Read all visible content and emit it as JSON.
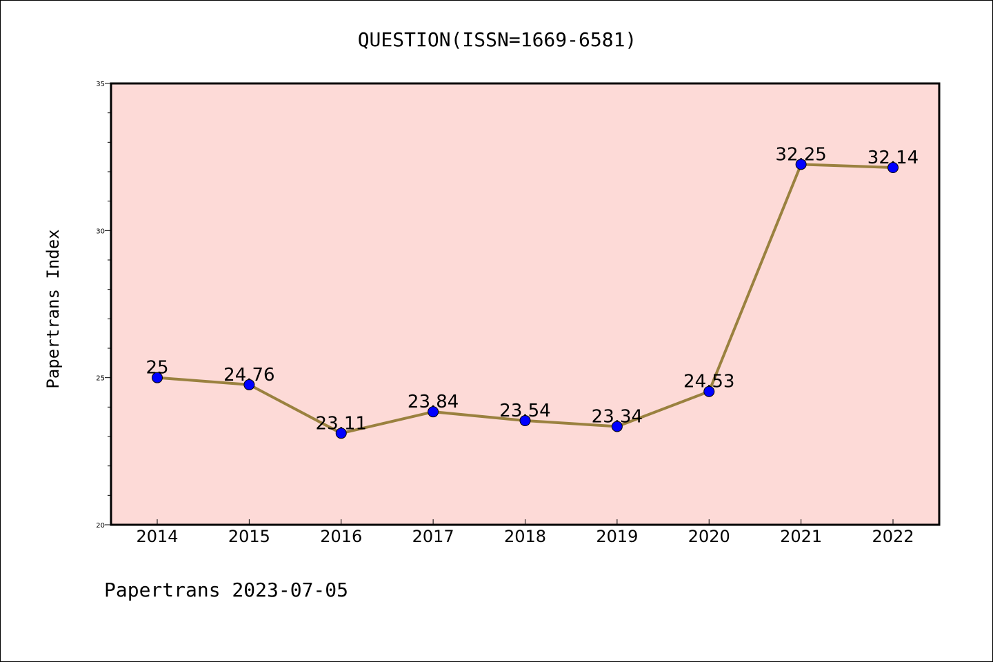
{
  "chart_data": {
    "type": "line",
    "title": "QUESTION(ISSN=1669-6581)",
    "xlabel": "",
    "ylabel": "Papertrans Index",
    "categories": [
      "2014",
      "2015",
      "2016",
      "2017",
      "2018",
      "2019",
      "2020",
      "2021",
      "2022"
    ],
    "series": [
      {
        "values": [
          25,
          24.76,
          23.11,
          23.84,
          23.54,
          23.34,
          24.53,
          32.25,
          32.14
        ],
        "data_labels": [
          "25",
          "24.76",
          "23.11",
          "23.84",
          "23.54",
          "23.34",
          "24.53",
          "32.25",
          "32.14"
        ]
      }
    ],
    "ylim": [
      20,
      35
    ],
    "yticks": [
      20,
      25,
      30,
      35
    ],
    "ytick_labels": [
      "20",
      "25",
      "30",
      "35"
    ],
    "y_minor_step": 1,
    "grid": false,
    "plot_background": "#fddad7",
    "line_color": "#9a813f",
    "marker_color": "#0000ff",
    "marker_edge_color": "#000000"
  },
  "footer": {
    "text": "Papertrans 2023-07-05"
  }
}
